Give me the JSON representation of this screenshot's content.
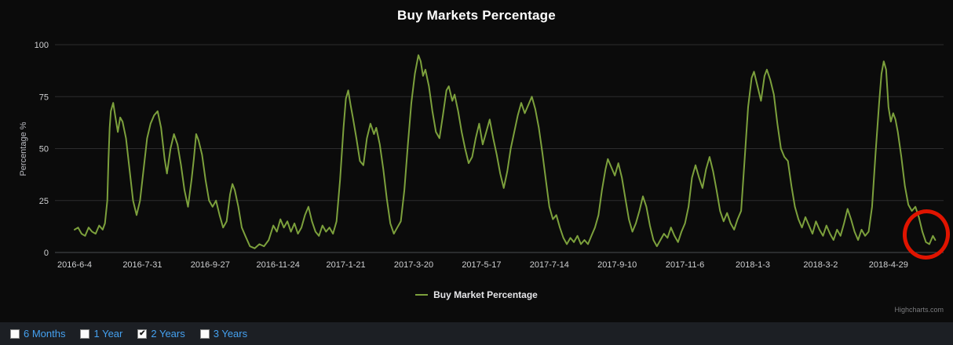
{
  "chart": {
    "title": "Buy Markets Percentage",
    "y_axis_title": "Percentage %",
    "legend_label": "Buy Market Percentage",
    "credits": "Highcharts.com"
  },
  "controls": {
    "items": [
      {
        "label": "6 Months",
        "checked": false
      },
      {
        "label": "1 Year",
        "checked": false
      },
      {
        "label": "2 Years",
        "checked": true
      },
      {
        "label": "3 Years",
        "checked": false
      }
    ],
    "label_color": "#45a1f0"
  },
  "annotation": {
    "shape": "ellipse",
    "color": "#e01400",
    "meaning": "highlight-latest-value"
  },
  "colors": {
    "background": "#0b0b0b",
    "controls_bar": "#1c1f24",
    "series_green": "#7ca03c",
    "grid": "#2c2c2e"
  },
  "chart_data": {
    "type": "line",
    "title": "Buy Markets Percentage",
    "xlabel": "",
    "ylabel": "Percentage %",
    "ylim": [
      0,
      100
    ],
    "yticks": [
      0,
      25,
      50,
      75,
      100
    ],
    "grid": "horizontal-only",
    "legend_position": "bottom-center",
    "x_tick_labels": [
      "2016-6-4",
      "2016-7-31",
      "2016-9-27",
      "2016-11-24",
      "2017-1-21",
      "2017-3-20",
      "2017-5-17",
      "2017-7-14",
      "2017-9-10",
      "2017-11-6",
      "2018-1-3",
      "2018-3-2",
      "2018-4-29"
    ],
    "x_tick_interval_days": 58,
    "series": [
      {
        "name": "Buy Market Percentage",
        "color": "#7ca03c",
        "points": [
          [
            0,
            11
          ],
          [
            3,
            12
          ],
          [
            6,
            9
          ],
          [
            9,
            8
          ],
          [
            12,
            12
          ],
          [
            15,
            10
          ],
          [
            18,
            9
          ],
          [
            21,
            13
          ],
          [
            24,
            11
          ],
          [
            26,
            14
          ],
          [
            28,
            25
          ],
          [
            29,
            45
          ],
          [
            30,
            60
          ],
          [
            31,
            68
          ],
          [
            33,
            72
          ],
          [
            35,
            65
          ],
          [
            37,
            58
          ],
          [
            39,
            65
          ],
          [
            41,
            63
          ],
          [
            44,
            55
          ],
          [
            47,
            40
          ],
          [
            50,
            25
          ],
          [
            53,
            18
          ],
          [
            56,
            25
          ],
          [
            59,
            40
          ],
          [
            62,
            55
          ],
          [
            65,
            62
          ],
          [
            68,
            66
          ],
          [
            71,
            68
          ],
          [
            74,
            60
          ],
          [
            77,
            45
          ],
          [
            79,
            38
          ],
          [
            82,
            50
          ],
          [
            85,
            57
          ],
          [
            88,
            52
          ],
          [
            91,
            42
          ],
          [
            94,
            30
          ],
          [
            97,
            22
          ],
          [
            100,
            35
          ],
          [
            102,
            45
          ],
          [
            104,
            57
          ],
          [
            106,
            54
          ],
          [
            109,
            47
          ],
          [
            112,
            35
          ],
          [
            115,
            25
          ],
          [
            118,
            22
          ],
          [
            121,
            25
          ],
          [
            124,
            18
          ],
          [
            127,
            12
          ],
          [
            130,
            15
          ],
          [
            133,
            28
          ],
          [
            135,
            33
          ],
          [
            137,
            30
          ],
          [
            140,
            22
          ],
          [
            143,
            12
          ],
          [
            146,
            8
          ],
          [
            150,
            3
          ],
          [
            154,
            2
          ],
          [
            158,
            4
          ],
          [
            162,
            3
          ],
          [
            166,
            6
          ],
          [
            170,
            13
          ],
          [
            173,
            10
          ],
          [
            176,
            16
          ],
          [
            179,
            12
          ],
          [
            182,
            15
          ],
          [
            185,
            10
          ],
          [
            188,
            14
          ],
          [
            191,
            9
          ],
          [
            194,
            12
          ],
          [
            197,
            18
          ],
          [
            200,
            22
          ],
          [
            203,
            15
          ],
          [
            206,
            10
          ],
          [
            209,
            8
          ],
          [
            212,
            13
          ],
          [
            215,
            10
          ],
          [
            218,
            12
          ],
          [
            221,
            9
          ],
          [
            224,
            15
          ],
          [
            227,
            35
          ],
          [
            230,
            60
          ],
          [
            232,
            74
          ],
          [
            234,
            78
          ],
          [
            236,
            71
          ],
          [
            238,
            65
          ],
          [
            241,
            55
          ],
          [
            244,
            44
          ],
          [
            247,
            42
          ],
          [
            250,
            55
          ],
          [
            253,
            62
          ],
          [
            256,
            57
          ],
          [
            258,
            60
          ],
          [
            261,
            52
          ],
          [
            264,
            40
          ],
          [
            267,
            26
          ],
          [
            270,
            14
          ],
          [
            273,
            9
          ],
          [
            276,
            12
          ],
          [
            279,
            15
          ],
          [
            282,
            30
          ],
          [
            285,
            52
          ],
          [
            288,
            72
          ],
          [
            291,
            86
          ],
          [
            294,
            95
          ],
          [
            296,
            92
          ],
          [
            298,
            85
          ],
          [
            300,
            88
          ],
          [
            303,
            80
          ],
          [
            306,
            68
          ],
          [
            309,
            58
          ],
          [
            312,
            55
          ],
          [
            315,
            66
          ],
          [
            318,
            78
          ],
          [
            320,
            80
          ],
          [
            323,
            73
          ],
          [
            325,
            76
          ],
          [
            328,
            68
          ],
          [
            331,
            58
          ],
          [
            334,
            50
          ],
          [
            337,
            43
          ],
          [
            340,
            46
          ],
          [
            343,
            55
          ],
          [
            346,
            62
          ],
          [
            349,
            52
          ],
          [
            352,
            58
          ],
          [
            355,
            64
          ],
          [
            358,
            55
          ],
          [
            361,
            47
          ],
          [
            364,
            38
          ],
          [
            367,
            31
          ],
          [
            370,
            39
          ],
          [
            373,
            50
          ],
          [
            376,
            58
          ],
          [
            379,
            66
          ],
          [
            382,
            72
          ],
          [
            385,
            67
          ],
          [
            388,
            71
          ],
          [
            391,
            75
          ],
          [
            394,
            69
          ],
          [
            397,
            60
          ],
          [
            400,
            48
          ],
          [
            403,
            35
          ],
          [
            406,
            22
          ],
          [
            409,
            16
          ],
          [
            412,
            18
          ],
          [
            415,
            12
          ],
          [
            418,
            7
          ],
          [
            421,
            4
          ],
          [
            424,
            7
          ],
          [
            427,
            5
          ],
          [
            430,
            8
          ],
          [
            433,
            4
          ],
          [
            436,
            6
          ],
          [
            439,
            4
          ],
          [
            442,
            8
          ],
          [
            445,
            12
          ],
          [
            448,
            18
          ],
          [
            451,
            30
          ],
          [
            454,
            40
          ],
          [
            456,
            45
          ],
          [
            459,
            41
          ],
          [
            462,
            37
          ],
          [
            465,
            43
          ],
          [
            468,
            36
          ],
          [
            471,
            26
          ],
          [
            474,
            16
          ],
          [
            477,
            10
          ],
          [
            480,
            14
          ],
          [
            483,
            20
          ],
          [
            486,
            27
          ],
          [
            489,
            22
          ],
          [
            492,
            13
          ],
          [
            495,
            6
          ],
          [
            498,
            3
          ],
          [
            501,
            6
          ],
          [
            504,
            9
          ],
          [
            507,
            7
          ],
          [
            510,
            12
          ],
          [
            513,
            8
          ],
          [
            516,
            5
          ],
          [
            519,
            10
          ],
          [
            522,
            14
          ],
          [
            525,
            22
          ],
          [
            528,
            36
          ],
          [
            531,
            42
          ],
          [
            534,
            36
          ],
          [
            537,
            31
          ],
          [
            540,
            40
          ],
          [
            543,
            46
          ],
          [
            546,
            39
          ],
          [
            549,
            30
          ],
          [
            552,
            20
          ],
          [
            555,
            15
          ],
          [
            558,
            19
          ],
          [
            561,
            14
          ],
          [
            564,
            11
          ],
          [
            567,
            16
          ],
          [
            570,
            20
          ],
          [
            573,
            45
          ],
          [
            576,
            70
          ],
          [
            579,
            84
          ],
          [
            581,
            87
          ],
          [
            584,
            80
          ],
          [
            587,
            73
          ],
          [
            590,
            85
          ],
          [
            592,
            88
          ],
          [
            595,
            83
          ],
          [
            598,
            76
          ],
          [
            601,
            62
          ],
          [
            604,
            50
          ],
          [
            607,
            46
          ],
          [
            610,
            44
          ],
          [
            613,
            32
          ],
          [
            616,
            22
          ],
          [
            619,
            16
          ],
          [
            622,
            12
          ],
          [
            625,
            17
          ],
          [
            628,
            13
          ],
          [
            631,
            9
          ],
          [
            634,
            15
          ],
          [
            637,
            11
          ],
          [
            640,
            8
          ],
          [
            643,
            13
          ],
          [
            646,
            9
          ],
          [
            649,
            6
          ],
          [
            652,
            11
          ],
          [
            655,
            8
          ],
          [
            658,
            14
          ],
          [
            661,
            21
          ],
          [
            664,
            16
          ],
          [
            667,
            10
          ],
          [
            670,
            6
          ],
          [
            673,
            11
          ],
          [
            676,
            8
          ],
          [
            679,
            10
          ],
          [
            682,
            22
          ],
          [
            685,
            48
          ],
          [
            688,
            72
          ],
          [
            690,
            86
          ],
          [
            692,
            92
          ],
          [
            694,
            88
          ],
          [
            696,
            70
          ],
          [
            698,
            63
          ],
          [
            700,
            67
          ],
          [
            702,
            64
          ],
          [
            704,
            58
          ],
          [
            707,
            46
          ],
          [
            710,
            32
          ],
          [
            713,
            23
          ],
          [
            716,
            20
          ],
          [
            719,
            22
          ],
          [
            722,
            17
          ],
          [
            725,
            10
          ],
          [
            728,
            5
          ],
          [
            731,
            4
          ],
          [
            734,
            8
          ],
          [
            736,
            6
          ]
        ]
      }
    ]
  }
}
